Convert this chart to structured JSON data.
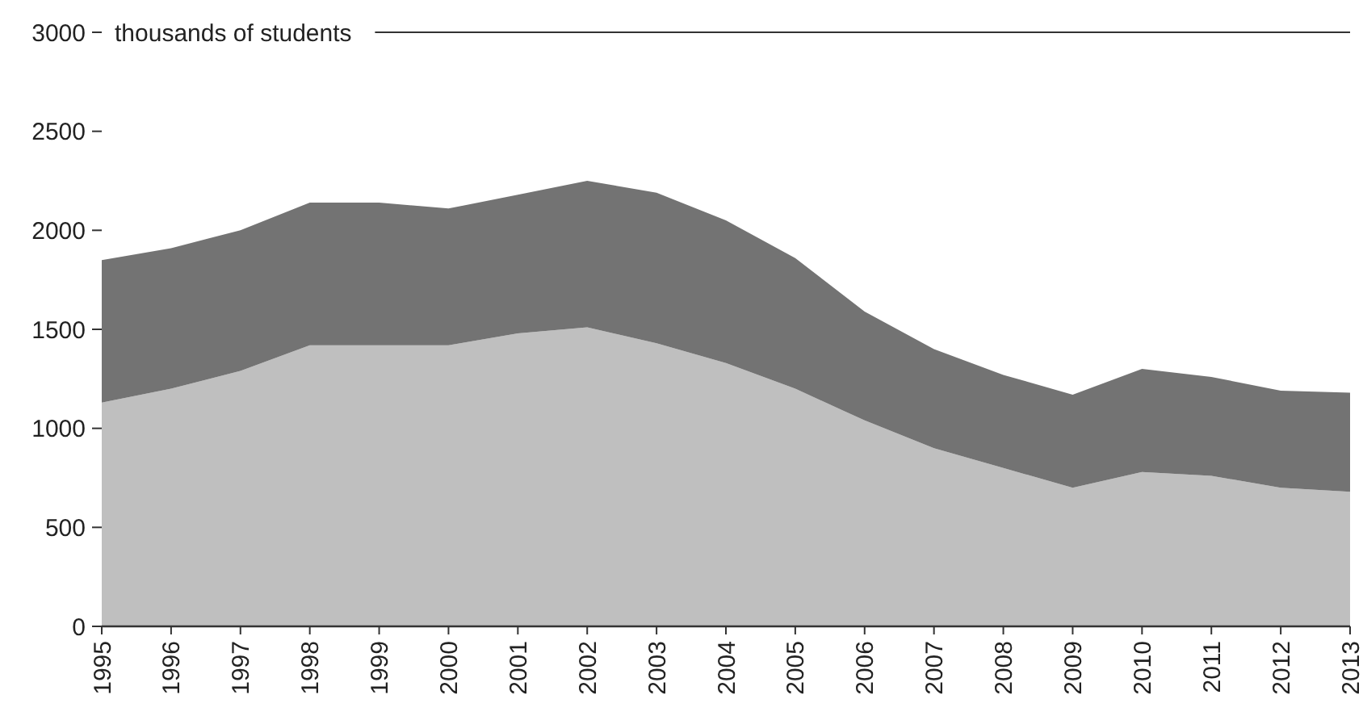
{
  "chart_data": {
    "type": "area",
    "stacked": true,
    "ylabel": "thousands of students",
    "categories": [
      "1995",
      "1996",
      "1997",
      "1998",
      "1999",
      "2000",
      "2001",
      "2002",
      "2003",
      "2004",
      "2005",
      "2006",
      "2007",
      "2008",
      "2009",
      "2010",
      "2011",
      "2012",
      "2013"
    ],
    "series": [
      {
        "color": "#bfbfbf",
        "values": [
          1130,
          1200,
          1290,
          1420,
          1420,
          1420,
          1480,
          1510,
          1430,
          1330,
          1200,
          1040,
          900,
          800,
          700,
          780,
          760,
          700,
          680
        ]
      },
      {
        "color": "#737373",
        "values": [
          720,
          710,
          710,
          720,
          720,
          690,
          700,
          740,
          760,
          720,
          660,
          550,
          500,
          470,
          470,
          520,
          500,
          490,
          500
        ]
      }
    ],
    "ylim": [
      0,
      3000
    ],
    "yticks": [
      0,
      500,
      1000,
      1500,
      2000,
      2500,
      3000
    ]
  }
}
